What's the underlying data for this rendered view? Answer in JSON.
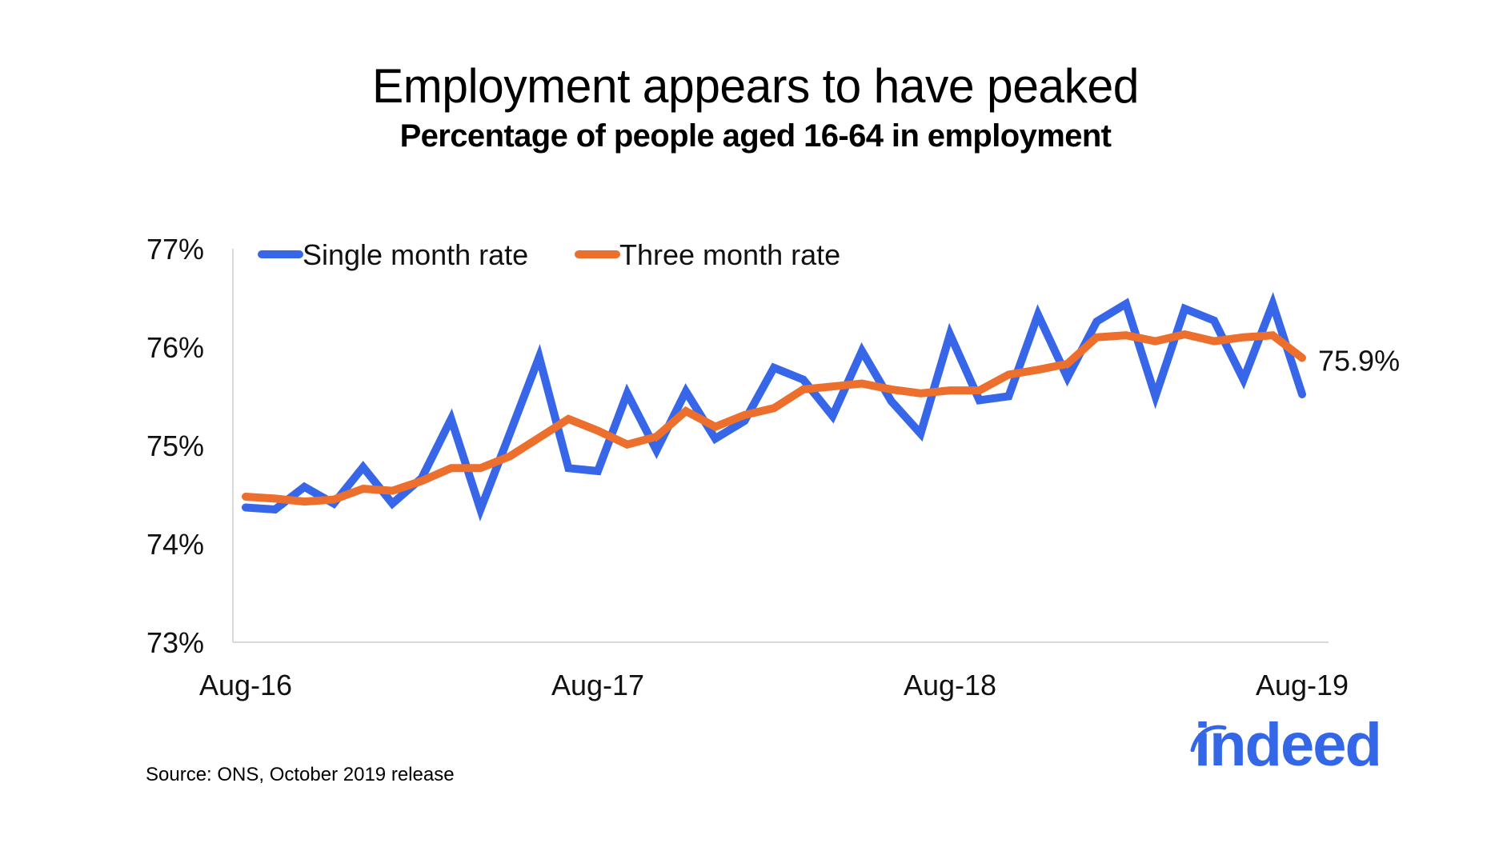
{
  "title": "Employment appears to have peaked",
  "subtitle": "Percentage of people aged 16-64 in employment",
  "source": "Source: ONS, October 2019 release",
  "logo": {
    "text": "indeed",
    "color": "#3467e8"
  },
  "chart_data": {
    "type": "line",
    "title": "Employment appears to have peaked",
    "subtitle": "Percentage of people aged 16-64 in employment",
    "xlabel": "",
    "ylabel": "",
    "ylim": [
      73,
      77
    ],
    "yticks": [
      73,
      74,
      75,
      76,
      77
    ],
    "ytick_labels": [
      "73%",
      "74%",
      "75%",
      "76%",
      "77%"
    ],
    "x_tick_labels": [
      {
        "label": "Aug-16",
        "index": 0
      },
      {
        "label": "Aug-17",
        "index": 12
      },
      {
        "label": "Aug-18",
        "index": 24
      },
      {
        "label": "Aug-19",
        "index": 36
      }
    ],
    "x": [
      "Aug-16",
      "Sep-16",
      "Oct-16",
      "Nov-16",
      "Dec-16",
      "Jan-17",
      "Feb-17",
      "Mar-17",
      "Apr-17",
      "May-17",
      "Jun-17",
      "Jul-17",
      "Aug-17",
      "Sep-17",
      "Oct-17",
      "Nov-17",
      "Dec-17",
      "Jan-18",
      "Feb-18",
      "Mar-18",
      "Apr-18",
      "May-18",
      "Jun-18",
      "Jul-18",
      "Aug-18",
      "Sep-18",
      "Oct-18",
      "Nov-18",
      "Dec-18",
      "Jan-19",
      "Feb-19",
      "Mar-19",
      "Apr-19",
      "May-19",
      "Jun-19",
      "Jul-19",
      "Aug-19"
    ],
    "grid": false,
    "legend": {
      "position": "top-left",
      "orientation": "horizontal"
    },
    "series": [
      {
        "name": "Single month rate",
        "color": "#3767e8",
        "values": [
          74.37,
          74.35,
          74.58,
          74.41,
          74.78,
          74.41,
          74.67,
          75.27,
          74.35,
          75.12,
          75.9,
          74.77,
          74.74,
          75.53,
          74.95,
          75.55,
          75.07,
          75.25,
          75.79,
          75.67,
          75.3,
          75.96,
          75.45,
          75.12,
          76.13,
          75.46,
          75.5,
          76.33,
          75.69,
          76.26,
          76.44,
          75.5,
          76.39,
          76.27,
          75.67,
          76.44,
          75.52
        ]
      },
      {
        "name": "Three month rate",
        "color": "#ec6f2e",
        "values": [
          74.48,
          74.46,
          74.43,
          74.45,
          74.56,
          74.54,
          74.64,
          74.77,
          74.77,
          74.89,
          75.08,
          75.27,
          75.15,
          75.01,
          75.09,
          75.35,
          75.19,
          75.31,
          75.38,
          75.57,
          75.6,
          75.63,
          75.57,
          75.53,
          75.56,
          75.56,
          75.72,
          75.77,
          75.83,
          76.1,
          76.12,
          76.06,
          76.13,
          76.06,
          76.1,
          76.12,
          75.89
        ]
      }
    ],
    "annotations": [
      {
        "text": "75.9%",
        "series": "Three month rate",
        "index": 36
      }
    ]
  }
}
